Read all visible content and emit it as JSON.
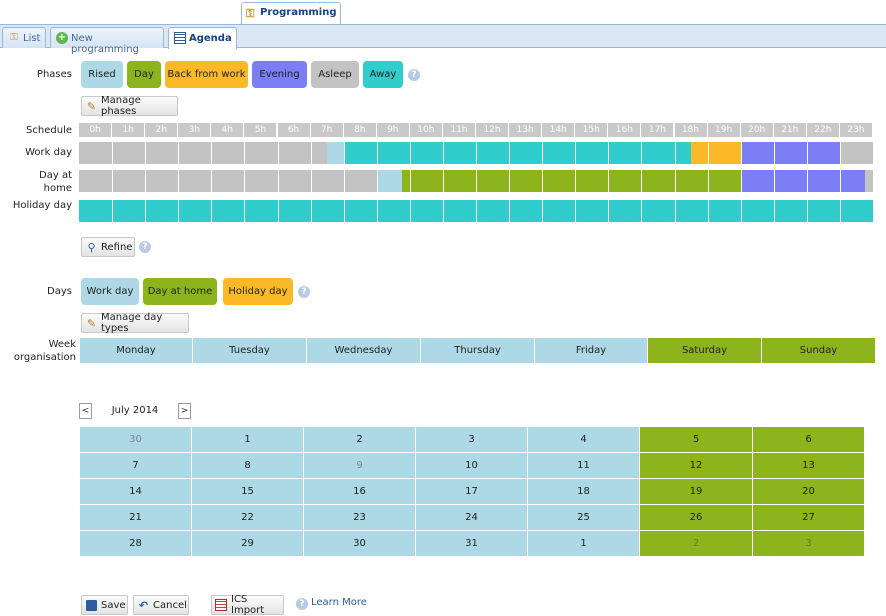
{
  "top_tab": {
    "label": "Programming"
  },
  "tabs": [
    {
      "label": "List"
    },
    {
      "label": "New programming"
    },
    {
      "label": "Agenda"
    }
  ],
  "phases": {
    "label": "Phases",
    "items": [
      {
        "label": "Rised",
        "color": "#add8e6"
      },
      {
        "label": "Day",
        "color": "#8db41d"
      },
      {
        "label": "Back from work",
        "color": "#fbb928"
      },
      {
        "label": "Evening",
        "color": "#7b7ef5"
      },
      {
        "label": "Asleep",
        "color": "#c3c3c3"
      },
      {
        "label": "Away",
        "color": "#31cdcd"
      }
    ],
    "manage_label": "Manage phases"
  },
  "schedule": {
    "label": "Schedule",
    "hours": [
      "0h",
      "1h",
      "2h",
      "3h",
      "4h",
      "5h",
      "6h",
      "7h",
      "8h",
      "9h",
      "10h",
      "11h",
      "12h",
      "13h",
      "14h",
      "15h",
      "16h",
      "17h",
      "18h",
      "19h",
      "20h",
      "21h",
      "22h",
      "23h"
    ],
    "rows": [
      {
        "label": "Work day",
        "segments": [
          {
            "phase": "Asleep",
            "start": 0,
            "end": 7.5
          },
          {
            "phase": "Rised",
            "start": 7.5,
            "end": 8
          },
          {
            "phase": "Away",
            "start": 8,
            "end": 18.5
          },
          {
            "phase": "Back from work",
            "start": 18.5,
            "end": 20
          },
          {
            "phase": "Evening",
            "start": 20,
            "end": 23
          },
          {
            "phase": "Asleep",
            "start": 23,
            "end": 24
          }
        ]
      },
      {
        "label": "Day at home",
        "segments": [
          {
            "phase": "Asleep",
            "start": 0,
            "end": 9
          },
          {
            "phase": "Rised",
            "start": 9,
            "end": 9.75
          },
          {
            "phase": "Day",
            "start": 9.75,
            "end": 20
          },
          {
            "phase": "Evening",
            "start": 20,
            "end": 23.75
          },
          {
            "phase": "Asleep",
            "start": 23.75,
            "end": 24
          }
        ]
      },
      {
        "label": "Holiday day",
        "segments": [
          {
            "phase": "Away",
            "start": 0,
            "end": 24
          }
        ]
      }
    ],
    "refine_label": "Refine"
  },
  "days": {
    "label": "Days",
    "items": [
      {
        "label": "Work day",
        "color": "#add8e6"
      },
      {
        "label": "Day at home",
        "color": "#8db41d"
      },
      {
        "label": "Holiday day",
        "color": "#fbb928"
      }
    ],
    "manage_label": "Manage day types"
  },
  "week": {
    "label": "Week organisation",
    "days": [
      {
        "label": "Monday",
        "type": "Work day"
      },
      {
        "label": "Tuesday",
        "type": "Work day"
      },
      {
        "label": "Wednesday",
        "type": "Work day"
      },
      {
        "label": "Thursday",
        "type": "Work day"
      },
      {
        "label": "Friday",
        "type": "Work day"
      },
      {
        "label": "Saturday",
        "type": "Day at home"
      },
      {
        "label": "Sunday",
        "type": "Day at home"
      }
    ]
  },
  "calendar": {
    "month": "July 2014",
    "prev": "<",
    "next": ">",
    "weeks": [
      [
        "30",
        "1",
        "2",
        "3",
        "4",
        "5",
        "6"
      ],
      [
        "7",
        "8",
        "9",
        "10",
        "11",
        "12",
        "13"
      ],
      [
        "14",
        "15",
        "16",
        "17",
        "18",
        "19",
        "20"
      ],
      [
        "21",
        "22",
        "23",
        "24",
        "25",
        "26",
        "27"
      ],
      [
        "28",
        "29",
        "30",
        "31",
        "1",
        "2",
        "3"
      ]
    ],
    "dimmed": [
      "0-0",
      "1-2",
      "4-5",
      "4-6"
    ]
  },
  "footer": {
    "save": "Save",
    "cancel": "Cancel",
    "ics": "ICS Import",
    "learn_more": "Learn More"
  }
}
